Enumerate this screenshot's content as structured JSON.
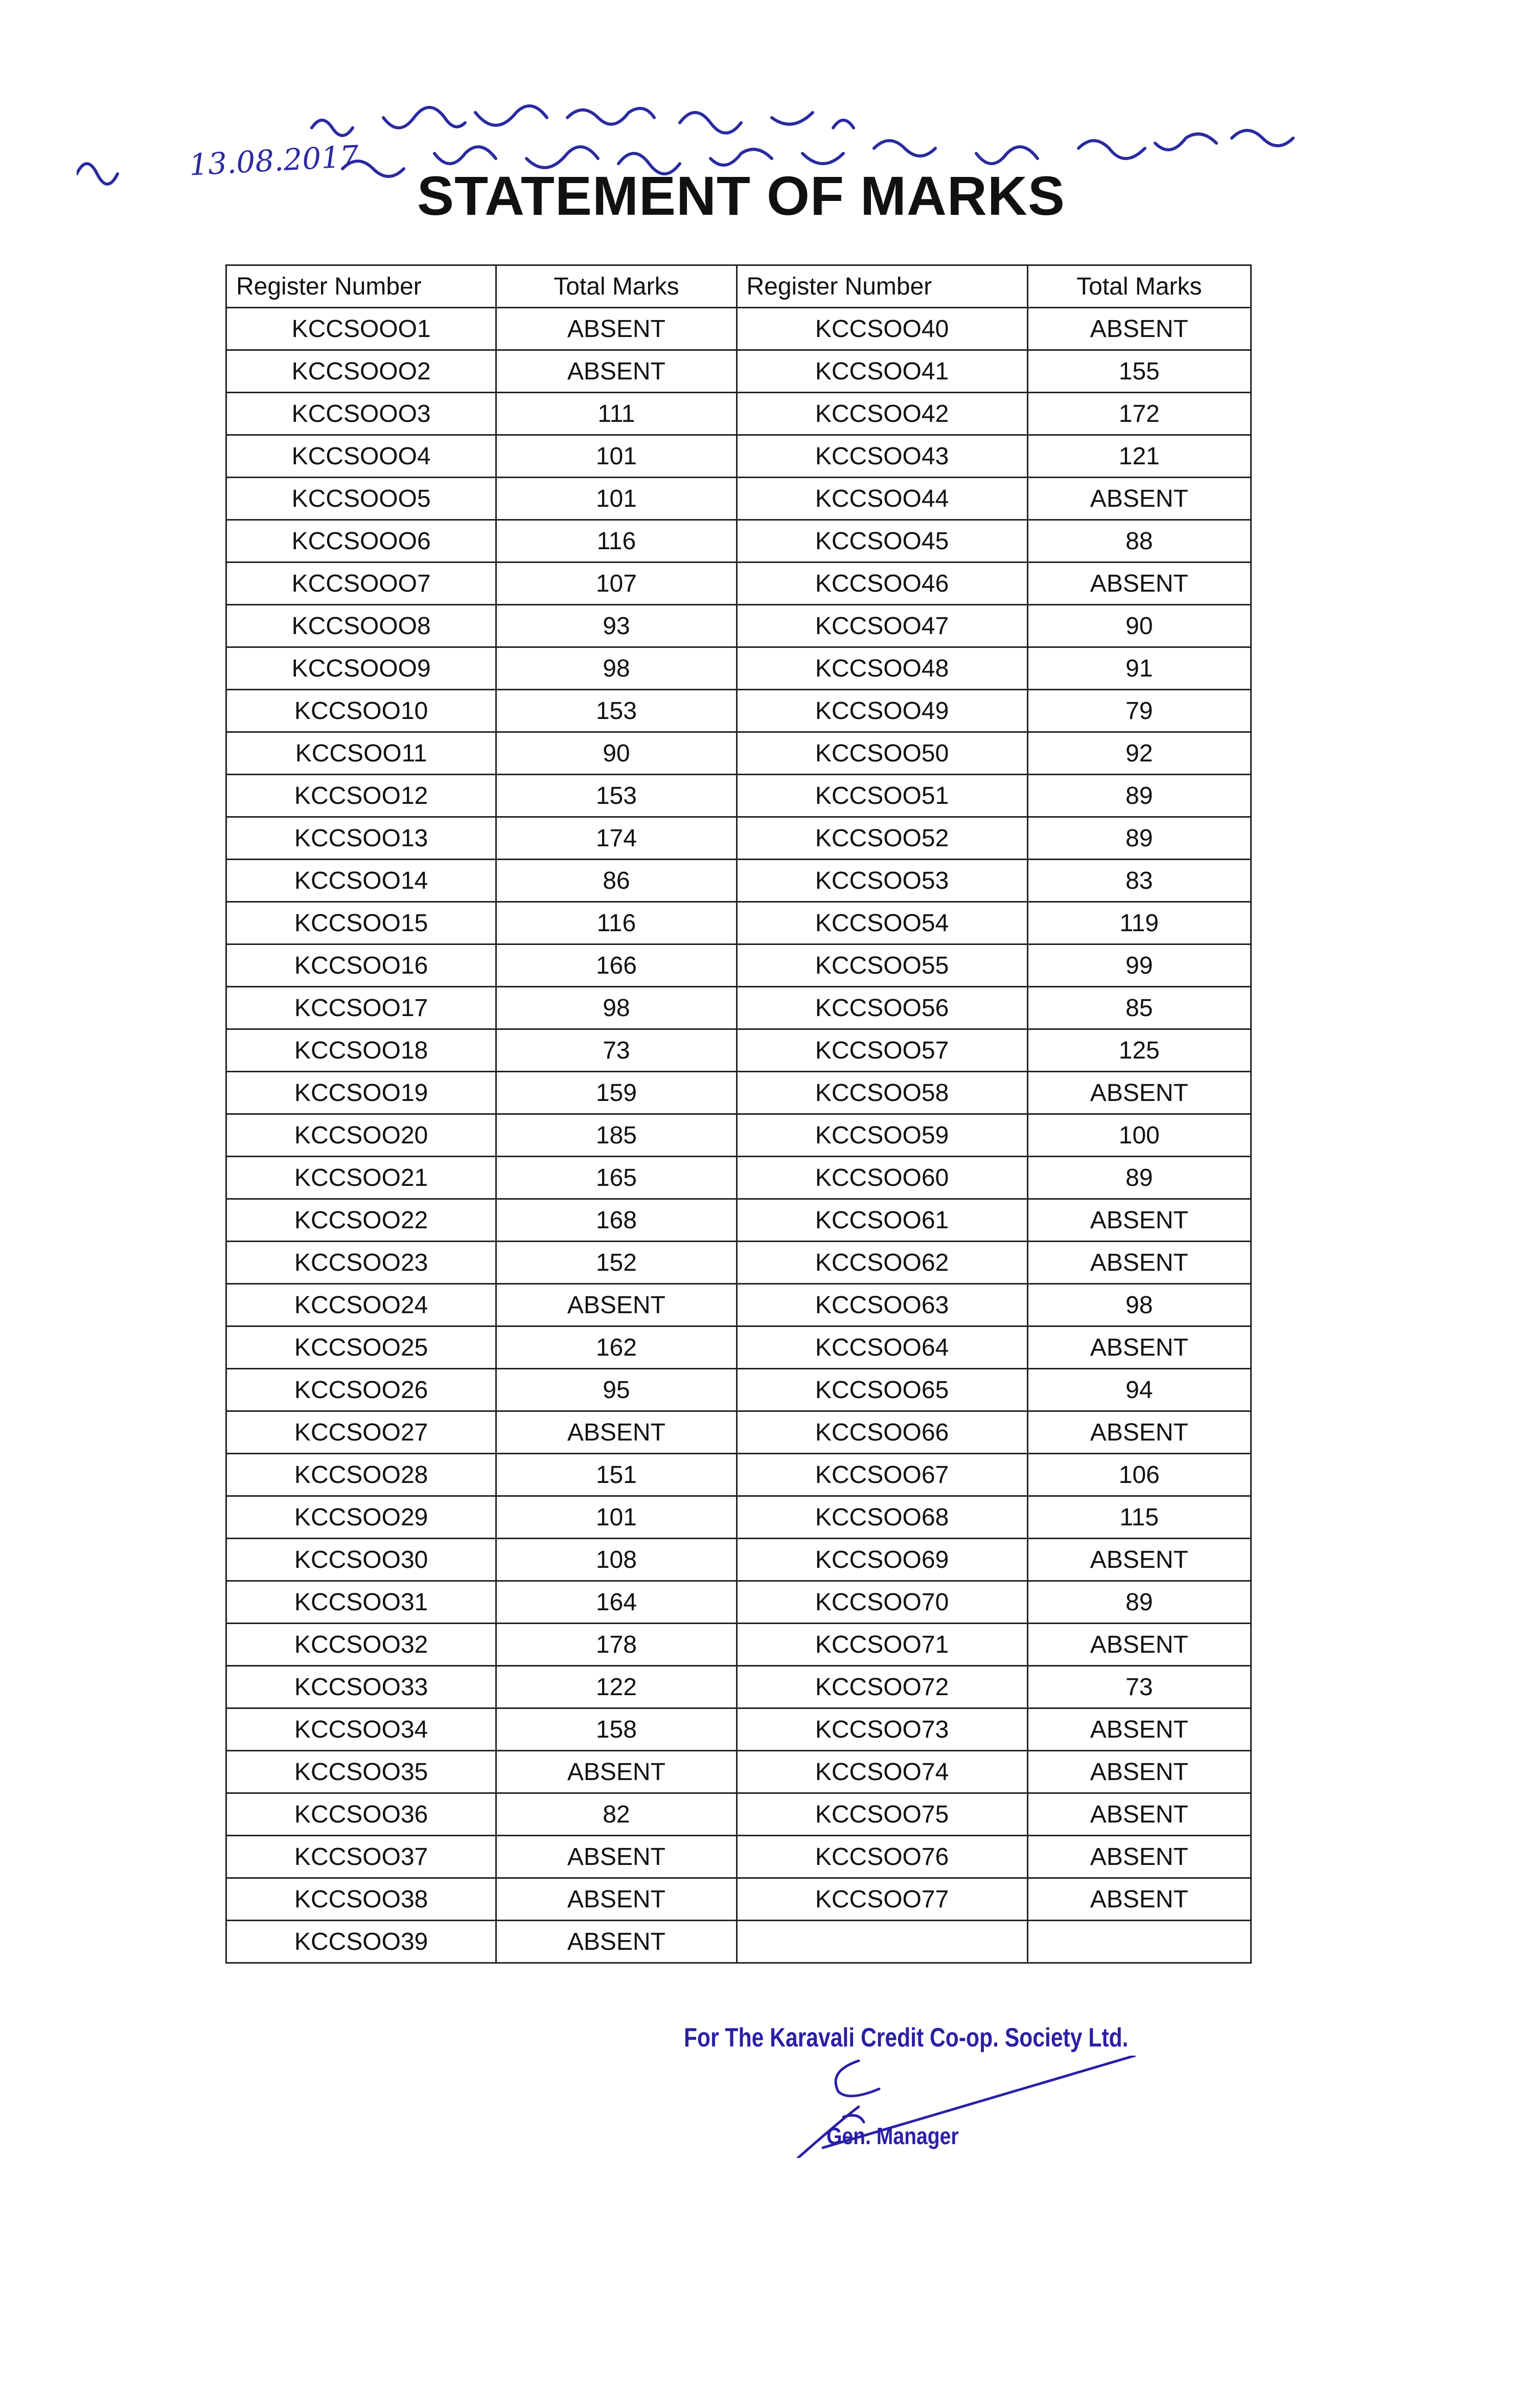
{
  "handwritten_note": {
    "date": "13.08.2017"
  },
  "title": "STATEMENT OF MARKS",
  "table": {
    "headers": [
      "Register Number",
      "Total Marks",
      "Register Number",
      "Total Marks"
    ],
    "rows": [
      [
        "KCCSOOO1",
        "ABSENT",
        "KCCSOO40",
        "ABSENT"
      ],
      [
        "KCCSOOO2",
        "ABSENT",
        "KCCSOO41",
        "155"
      ],
      [
        "KCCSOOO3",
        "111",
        "KCCSOO42",
        "172"
      ],
      [
        "KCCSOOO4",
        "101",
        "KCCSOO43",
        "121"
      ],
      [
        "KCCSOOO5",
        "101",
        "KCCSOO44",
        "ABSENT"
      ],
      [
        "KCCSOOO6",
        "116",
        "KCCSOO45",
        "88"
      ],
      [
        "KCCSOOO7",
        "107",
        "KCCSOO46",
        "ABSENT"
      ],
      [
        "KCCSOOO8",
        "93",
        "KCCSOO47",
        "90"
      ],
      [
        "KCCSOOO9",
        "98",
        "KCCSOO48",
        "91"
      ],
      [
        "KCCSOO10",
        "153",
        "KCCSOO49",
        "79"
      ],
      [
        "KCCSOO11",
        "90",
        "KCCSOO50",
        "92"
      ],
      [
        "KCCSOO12",
        "153",
        "KCCSOO51",
        "89"
      ],
      [
        "KCCSOO13",
        "174",
        "KCCSOO52",
        "89"
      ],
      [
        "KCCSOO14",
        "86",
        "KCCSOO53",
        "83"
      ],
      [
        "KCCSOO15",
        "116",
        "KCCSOO54",
        "119"
      ],
      [
        "KCCSOO16",
        "166",
        "KCCSOO55",
        "99"
      ],
      [
        "KCCSOO17",
        "98",
        "KCCSOO56",
        "85"
      ],
      [
        "KCCSOO18",
        "73",
        "KCCSOO57",
        "125"
      ],
      [
        "KCCSOO19",
        "159",
        "KCCSOO58",
        "ABSENT"
      ],
      [
        "KCCSOO20",
        "185",
        "KCCSOO59",
        "100"
      ],
      [
        "KCCSOO21",
        "165",
        "KCCSOO60",
        "89"
      ],
      [
        "KCCSOO22",
        "168",
        "KCCSOO61",
        "ABSENT"
      ],
      [
        "KCCSOO23",
        "152",
        "KCCSOO62",
        "ABSENT"
      ],
      [
        "KCCSOO24",
        "ABSENT",
        "KCCSOO63",
        "98"
      ],
      [
        "KCCSOO25",
        "162",
        "KCCSOO64",
        "ABSENT"
      ],
      [
        "KCCSOO26",
        "95",
        "KCCSOO65",
        "94"
      ],
      [
        "KCCSOO27",
        "ABSENT",
        "KCCSOO66",
        "ABSENT"
      ],
      [
        "KCCSOO28",
        "151",
        "KCCSOO67",
        "106"
      ],
      [
        "KCCSOO29",
        "101",
        "KCCSOO68",
        "115"
      ],
      [
        "KCCSOO30",
        "108",
        "KCCSOO69",
        "ABSENT"
      ],
      [
        "KCCSOO31",
        "164",
        "KCCSOO70",
        "89"
      ],
      [
        "KCCSOO32",
        "178",
        "KCCSOO71",
        "ABSENT"
      ],
      [
        "KCCSOO33",
        "122",
        "KCCSOO72",
        "73"
      ],
      [
        "KCCSOO34",
        "158",
        "KCCSOO73",
        "ABSENT"
      ],
      [
        "KCCSOO35",
        "ABSENT",
        "KCCSOO74",
        "ABSENT"
      ],
      [
        "KCCSOO36",
        "82",
        "KCCSOO75",
        "ABSENT"
      ],
      [
        "KCCSOO37",
        "ABSENT",
        "KCCSOO76",
        "ABSENT"
      ],
      [
        "KCCSOO38",
        "ABSENT",
        "KCCSOO77",
        "ABSENT"
      ],
      [
        "KCCSOO39",
        "ABSENT",
        "",
        ""
      ]
    ]
  },
  "footer": {
    "organization": "For The Karavali Credit Co-op. Society Ltd.",
    "designation": "Gen. Manager"
  },
  "colors": {
    "ink_blue": "#2a1fa6",
    "text": "#111111"
  }
}
